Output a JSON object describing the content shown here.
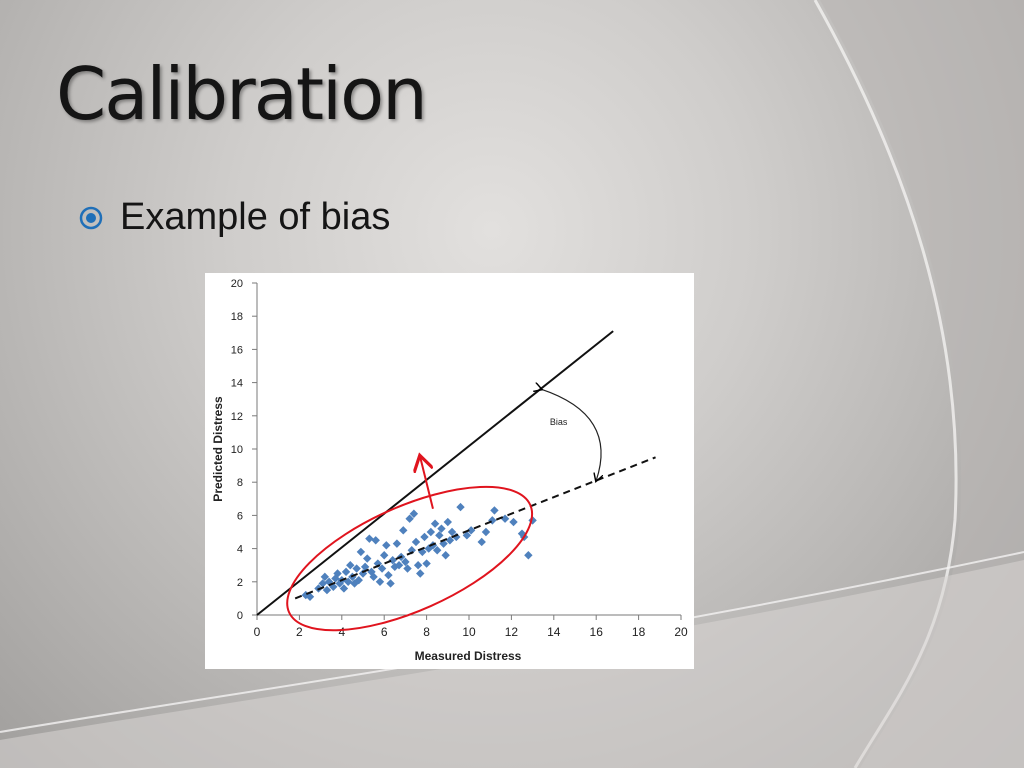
{
  "slide": {
    "title": "Calibration",
    "bullet": "Example of bias",
    "bullet_icon": "circled-dot-bullet-icon"
  },
  "colors": {
    "accent": "#1f6fb8",
    "points": "#4f81bd",
    "ellipse": "#e0141e",
    "arrow": "#e0141e"
  },
  "chart_data": {
    "type": "scatter",
    "title": "",
    "xlabel": "Measured Distress",
    "ylabel": "Predicted Distress",
    "xlim": [
      0,
      20
    ],
    "ylim": [
      0,
      20
    ],
    "xticks": [
      0,
      2,
      4,
      6,
      8,
      10,
      12,
      14,
      16,
      18,
      20
    ],
    "yticks": [
      0,
      2,
      4,
      6,
      8,
      10,
      12,
      14,
      16,
      18,
      20
    ],
    "grid": false,
    "points": [
      [
        2.3,
        1.2
      ],
      [
        2.5,
        1.1
      ],
      [
        2.9,
        1.6
      ],
      [
        3.1,
        1.9
      ],
      [
        3.2,
        2.3
      ],
      [
        3.3,
        1.5
      ],
      [
        3.4,
        2.0
      ],
      [
        3.6,
        1.7
      ],
      [
        3.7,
        2.2
      ],
      [
        3.8,
        2.5
      ],
      [
        3.9,
        1.9
      ],
      [
        4.0,
        2.1
      ],
      [
        4.1,
        1.6
      ],
      [
        4.2,
        2.6
      ],
      [
        4.3,
        2.0
      ],
      [
        4.4,
        3.0
      ],
      [
        4.5,
        2.3
      ],
      [
        4.6,
        1.9
      ],
      [
        4.7,
        2.8
      ],
      [
        4.8,
        2.1
      ],
      [
        4.9,
        3.8
      ],
      [
        5.0,
        2.5
      ],
      [
        5.1,
        2.9
      ],
      [
        5.2,
        3.4
      ],
      [
        5.3,
        4.6
      ],
      [
        5.4,
        2.6
      ],
      [
        5.5,
        2.3
      ],
      [
        5.6,
        4.5
      ],
      [
        5.7,
        3.1
      ],
      [
        5.8,
        2.0
      ],
      [
        5.9,
        2.8
      ],
      [
        6.0,
        3.6
      ],
      [
        6.1,
        4.2
      ],
      [
        6.2,
        2.4
      ],
      [
        6.3,
        1.9
      ],
      [
        6.4,
        3.3
      ],
      [
        6.5,
        2.9
      ],
      [
        6.6,
        4.3
      ],
      [
        6.7,
        3.0
      ],
      [
        6.8,
        3.5
      ],
      [
        6.9,
        5.1
      ],
      [
        7.0,
        3.2
      ],
      [
        7.1,
        2.8
      ],
      [
        7.2,
        5.8
      ],
      [
        7.3,
        3.9
      ],
      [
        7.4,
        6.1
      ],
      [
        7.5,
        4.4
      ],
      [
        7.6,
        3.0
      ],
      [
        7.7,
        2.5
      ],
      [
        7.8,
        3.8
      ],
      [
        7.9,
        4.7
      ],
      [
        8.0,
        3.1
      ],
      [
        8.1,
        4.0
      ],
      [
        8.2,
        5.0
      ],
      [
        8.3,
        4.2
      ],
      [
        8.4,
        5.5
      ],
      [
        8.5,
        3.9
      ],
      [
        8.6,
        4.8
      ],
      [
        8.7,
        5.2
      ],
      [
        8.8,
        4.3
      ],
      [
        8.9,
        3.6
      ],
      [
        9.0,
        5.6
      ],
      [
        9.1,
        4.5
      ],
      [
        9.2,
        5.0
      ],
      [
        9.4,
        4.7
      ],
      [
        9.6,
        6.5
      ],
      [
        9.9,
        4.8
      ],
      [
        10.1,
        5.1
      ],
      [
        10.6,
        4.4
      ],
      [
        10.8,
        5.0
      ],
      [
        11.1,
        5.7
      ],
      [
        11.2,
        6.3
      ],
      [
        11.7,
        5.8
      ],
      [
        12.1,
        5.6
      ],
      [
        12.5,
        4.9
      ],
      [
        12.6,
        4.7
      ],
      [
        12.8,
        3.6
      ],
      [
        13.0,
        5.7
      ]
    ],
    "lines": [
      {
        "name": "",
        "style": "solid",
        "from": [
          0,
          0
        ],
        "to": [
          16.8,
          17.1
        ]
      },
      {
        "name": "",
        "style": "dashed",
        "from": [
          1.8,
          1.0
        ],
        "to": [
          18.8,
          9.5
        ]
      }
    ],
    "annotations": [
      {
        "type": "curved-arrow",
        "label": "Bias",
        "from": [
          13.4,
          13.6
        ],
        "to": [
          16.0,
          8.1
        ]
      },
      {
        "type": "ellipse",
        "center": [
          7.2,
          3.4
        ],
        "note": ""
      },
      {
        "type": "arrow",
        "from": [
          8.3,
          6.4
        ],
        "to": [
          7.7,
          9.5
        ]
      }
    ]
  }
}
